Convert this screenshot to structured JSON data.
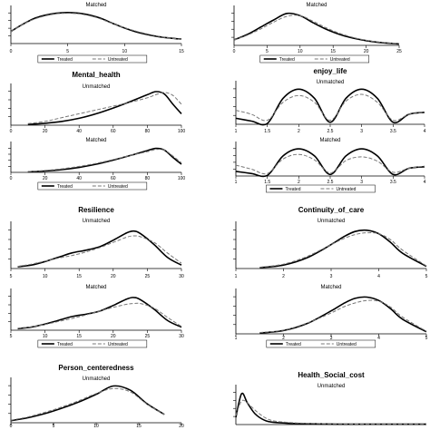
{
  "legend": {
    "treated": "Treated",
    "untreated": "Untreated"
  },
  "chart_data": [
    {
      "id": "top-left-matched",
      "type": "line",
      "title": "",
      "subtitle": "Matched",
      "x": [
        0,
        1,
        2,
        3,
        4,
        5,
        6,
        7,
        8,
        9,
        10,
        11,
        12,
        13,
        14,
        15
      ],
      "xlim": [
        0,
        15
      ],
      "xticks": [
        0,
        5,
        10,
        15
      ],
      "series": [
        {
          "name": "Treated",
          "values": [
            0.35,
            0.55,
            0.72,
            0.82,
            0.88,
            0.9,
            0.88,
            0.82,
            0.72,
            0.58,
            0.45,
            0.34,
            0.26,
            0.2,
            0.16,
            0.13
          ]
        },
        {
          "name": "Untreated",
          "values": [
            0.35,
            0.55,
            0.7,
            0.8,
            0.86,
            0.88,
            0.86,
            0.8,
            0.7,
            0.57,
            0.46,
            0.36,
            0.28,
            0.21,
            0.16,
            0.12
          ]
        }
      ],
      "legend": true
    },
    {
      "id": "top-right-matched",
      "type": "line",
      "title": "",
      "subtitle": "Matched",
      "x": [
        0,
        2,
        4,
        6,
        8,
        10,
        12,
        14,
        16,
        18,
        20,
        22,
        24,
        25
      ],
      "xlim": [
        0,
        25
      ],
      "xticks": [
        0,
        5,
        10,
        15,
        20,
        25
      ],
      "series": [
        {
          "name": "Treated",
          "values": [
            0.15,
            0.3,
            0.5,
            0.7,
            0.88,
            0.82,
            0.62,
            0.44,
            0.3,
            0.2,
            0.13,
            0.08,
            0.05,
            0.04
          ]
        },
        {
          "name": "Untreated",
          "values": [
            0.15,
            0.28,
            0.45,
            0.64,
            0.8,
            0.82,
            0.66,
            0.48,
            0.33,
            0.22,
            0.14,
            0.09,
            0.06,
            0.05
          ]
        }
      ],
      "legend": true
    },
    {
      "id": "mental-health-unmatched",
      "type": "line",
      "title": "Mental_health",
      "subtitle": "Unmatched",
      "x": [
        10,
        20,
        30,
        40,
        50,
        60,
        70,
        80,
        85,
        90,
        95,
        100
      ],
      "xlim": [
        0,
        100
      ],
      "xticks": [
        0,
        20,
        40,
        60,
        80,
        100
      ],
      "series": [
        {
          "name": "Treated",
          "values": [
            0.02,
            0.05,
            0.1,
            0.18,
            0.3,
            0.45,
            0.62,
            0.8,
            0.88,
            0.82,
            0.55,
            0.3
          ]
        },
        {
          "name": "Untreated",
          "values": [
            0.04,
            0.1,
            0.2,
            0.3,
            0.4,
            0.5,
            0.6,
            0.72,
            0.8,
            0.86,
            0.78,
            0.55
          ]
        }
      ],
      "legend": false
    },
    {
      "id": "mental-health-matched",
      "type": "line",
      "title": "",
      "subtitle": "Matched",
      "x": [
        10,
        20,
        30,
        40,
        50,
        60,
        70,
        80,
        85,
        90,
        95,
        100
      ],
      "xlim": [
        0,
        100
      ],
      "xticks": [
        0,
        20,
        40,
        60,
        80,
        100
      ],
      "series": [
        {
          "name": "Treated",
          "values": [
            0.02,
            0.05,
            0.1,
            0.18,
            0.3,
            0.45,
            0.62,
            0.8,
            0.88,
            0.82,
            0.55,
            0.3
          ]
        },
        {
          "name": "Untreated",
          "values": [
            0.03,
            0.07,
            0.13,
            0.22,
            0.33,
            0.47,
            0.62,
            0.76,
            0.84,
            0.82,
            0.6,
            0.35
          ]
        }
      ],
      "legend": true
    },
    {
      "id": "enjoy-life-unmatched",
      "type": "line",
      "title": "enjoy_life",
      "subtitle": "Unmatched",
      "x": [
        1,
        1.25,
        1.5,
        1.75,
        2,
        2.25,
        2.5,
        2.75,
        3,
        3.25,
        3.5,
        3.75,
        4
      ],
      "xlim": [
        1,
        4
      ],
      "xticks": [
        1,
        1.5,
        2,
        2.5,
        3,
        3.5,
        4
      ],
      "series": [
        {
          "name": "Treated",
          "values": [
            0.15,
            0.08,
            0.02,
            0.65,
            0.88,
            0.65,
            0.05,
            0.65,
            0.88,
            0.65,
            0.05,
            0.25,
            0.3
          ]
        },
        {
          "name": "Untreated",
          "values": [
            0.35,
            0.25,
            0.1,
            0.55,
            0.72,
            0.55,
            0.1,
            0.58,
            0.75,
            0.55,
            0.1,
            0.25,
            0.3
          ]
        }
      ],
      "legend": false
    },
    {
      "id": "enjoy-life-matched",
      "type": "line",
      "title": "",
      "subtitle": "Matched",
      "x": [
        1,
        1.25,
        1.5,
        1.75,
        2,
        2.25,
        2.5,
        2.75,
        3,
        3.25,
        3.5,
        3.75,
        4
      ],
      "xlim": [
        1,
        4
      ],
      "xticks": [
        1,
        1.5,
        2,
        2.5,
        3,
        3.5,
        4
      ],
      "series": [
        {
          "name": "Treated",
          "values": [
            0.15,
            0.08,
            0.02,
            0.65,
            0.88,
            0.65,
            0.05,
            0.65,
            0.88,
            0.65,
            0.05,
            0.25,
            0.3
          ]
        },
        {
          "name": "Untreated",
          "values": [
            0.35,
            0.22,
            0.08,
            0.55,
            0.7,
            0.52,
            0.1,
            0.5,
            0.62,
            0.48,
            0.12,
            0.25,
            0.32
          ]
        }
      ],
      "legend": true
    },
    {
      "id": "resilience-unmatched",
      "type": "line",
      "title": "Resilience",
      "subtitle": "Unmatched",
      "x": [
        6,
        8,
        10,
        12,
        14,
        16,
        18,
        20,
        22,
        23,
        24,
        26,
        28,
        30
      ],
      "xlim": [
        5,
        30
      ],
      "xticks": [
        5,
        10,
        15,
        20,
        25,
        30
      ],
      "series": [
        {
          "name": "Treated",
          "values": [
            0.04,
            0.08,
            0.16,
            0.26,
            0.36,
            0.42,
            0.5,
            0.65,
            0.82,
            0.86,
            0.8,
            0.55,
            0.25,
            0.08
          ]
        },
        {
          "name": "Untreated",
          "values": [
            0.05,
            0.1,
            0.17,
            0.24,
            0.3,
            0.38,
            0.48,
            0.6,
            0.72,
            0.75,
            0.73,
            0.6,
            0.35,
            0.12
          ]
        }
      ],
      "legend": false
    },
    {
      "id": "resilience-matched",
      "type": "line",
      "title": "",
      "subtitle": "Matched",
      "x": [
        6,
        8,
        10,
        12,
        14,
        16,
        18,
        20,
        22,
        23,
        24,
        26,
        28,
        30
      ],
      "xlim": [
        5,
        30
      ],
      "xticks": [
        5,
        10,
        15,
        20,
        25,
        30
      ],
      "series": [
        {
          "name": "Treated",
          "values": [
            0.04,
            0.08,
            0.16,
            0.26,
            0.36,
            0.42,
            0.5,
            0.65,
            0.82,
            0.86,
            0.8,
            0.55,
            0.25,
            0.08
          ]
        },
        {
          "name": "Untreated",
          "values": [
            0.05,
            0.09,
            0.15,
            0.23,
            0.31,
            0.4,
            0.5,
            0.6,
            0.68,
            0.7,
            0.7,
            0.58,
            0.33,
            0.1
          ]
        }
      ],
      "legend": true
    },
    {
      "id": "continuity-of-care-unmatched",
      "type": "line",
      "title": "Continuity_of_care",
      "subtitle": "Unmatched",
      "x": [
        1.5,
        2,
        2.5,
        3,
        3.25,
        3.5,
        3.75,
        4,
        4.25,
        4.5,
        5
      ],
      "xlim": [
        1,
        5
      ],
      "xticks": [
        1,
        2,
        3,
        4,
        5
      ],
      "series": [
        {
          "name": "Treated",
          "values": [
            0.02,
            0.08,
            0.25,
            0.55,
            0.72,
            0.85,
            0.88,
            0.8,
            0.6,
            0.35,
            0.05
          ]
        },
        {
          "name": "Untreated",
          "values": [
            0.03,
            0.1,
            0.28,
            0.55,
            0.68,
            0.78,
            0.82,
            0.8,
            0.66,
            0.42,
            0.06
          ]
        }
      ],
      "legend": false
    },
    {
      "id": "continuity-of-care-matched",
      "type": "line",
      "title": "",
      "subtitle": "Matched",
      "x": [
        1.5,
        2,
        2.5,
        3,
        3.25,
        3.5,
        3.75,
        4,
        4.25,
        4.5,
        5
      ],
      "xlim": [
        1,
        5
      ],
      "xticks": [
        1,
        2,
        3,
        4,
        5
      ],
      "series": [
        {
          "name": "Treated",
          "values": [
            0.02,
            0.08,
            0.25,
            0.55,
            0.72,
            0.85,
            0.88,
            0.8,
            0.6,
            0.35,
            0.05
          ]
        },
        {
          "name": "Untreated",
          "values": [
            0.03,
            0.09,
            0.26,
            0.5,
            0.64,
            0.74,
            0.8,
            0.78,
            0.64,
            0.4,
            0.06
          ]
        }
      ],
      "legend": true
    },
    {
      "id": "person-centeredness-unmatched",
      "type": "line",
      "title": "Person_centeredness",
      "subtitle": "Unmatched",
      "x": [
        0,
        2,
        4,
        6,
        8,
        10,
        12,
        14,
        16,
        18
      ],
      "xlim": [
        0,
        20
      ],
      "xticks": [
        0,
        5,
        10,
        15,
        20
      ],
      "series": [
        {
          "name": "Treated",
          "values": [
            0.05,
            0.12,
            0.22,
            0.35,
            0.5,
            0.68,
            0.88,
            0.78,
            0.45,
            0.2
          ]
        },
        {
          "name": "Untreated",
          "values": [
            0.06,
            0.14,
            0.25,
            0.38,
            0.53,
            0.7,
            0.82,
            0.74,
            0.44,
            0.2
          ]
        }
      ],
      "legend": false
    },
    {
      "id": "health-social-cost-unmatched",
      "type": "line",
      "title": "Health_Social_cost",
      "subtitle": "Unmatched",
      "x": [
        0,
        0.3,
        0.6,
        1,
        1.5,
        2,
        3,
        4,
        5,
        6,
        7,
        8,
        9,
        10
      ],
      "xlim": [
        0,
        10
      ],
      "xticks": [],
      "series": [
        {
          "name": "Treated",
          "values": [
            0.2,
            0.85,
            0.6,
            0.3,
            0.12,
            0.06,
            0.03,
            0.02,
            0.015,
            0.01,
            0.01,
            0.01,
            0.01,
            0.01
          ]
        },
        {
          "name": "Untreated",
          "values": [
            0.25,
            0.65,
            0.6,
            0.4,
            0.2,
            0.1,
            0.05,
            0.03,
            0.02,
            0.015,
            0.01,
            0.01,
            0.01,
            0.01
          ]
        }
      ],
      "legend": false
    }
  ]
}
